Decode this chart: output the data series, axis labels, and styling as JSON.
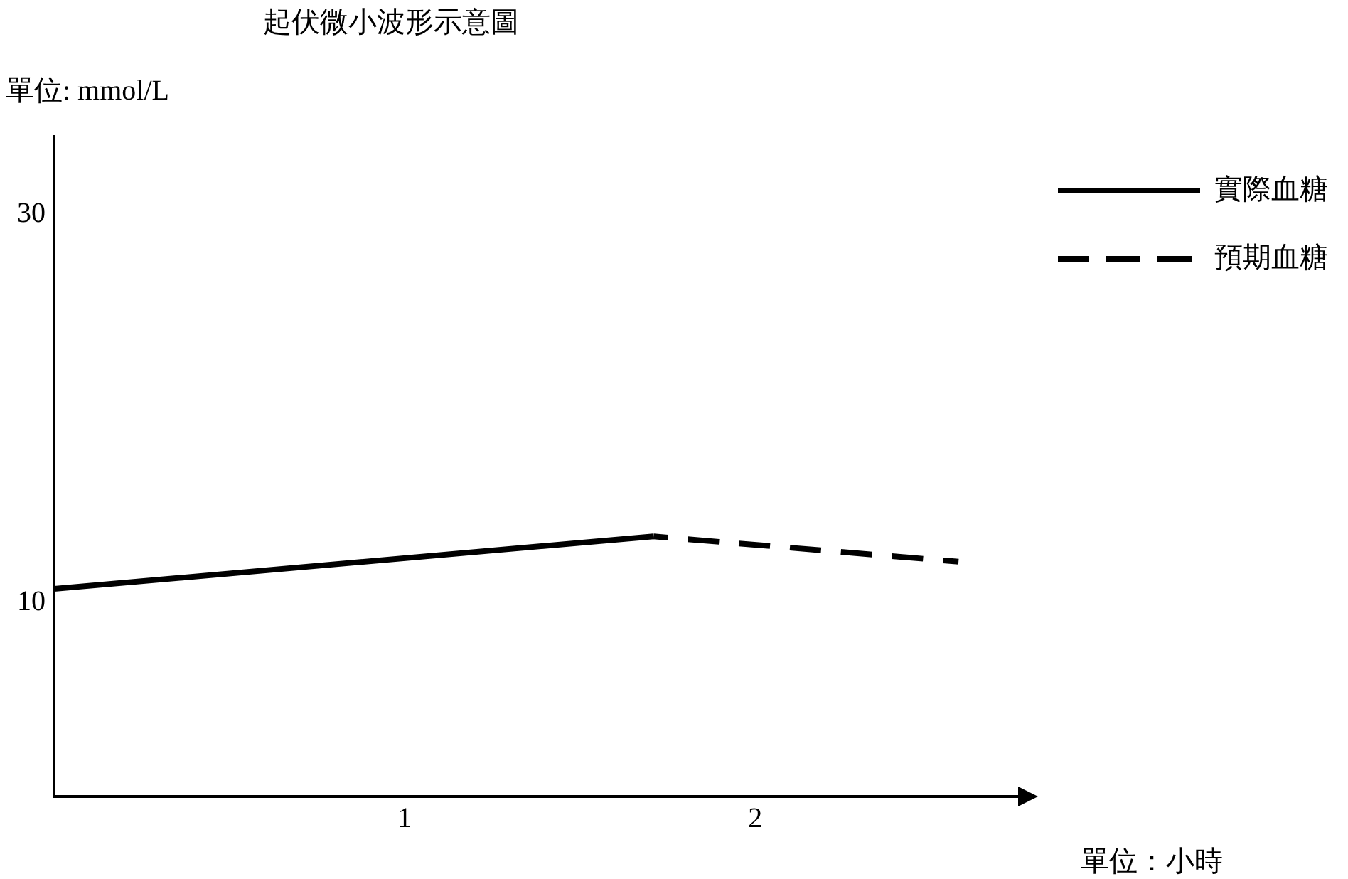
{
  "chart_data": {
    "type": "line",
    "title": "起伏微小波形示意圖",
    "ylabel": "單位: mmol/L",
    "xlabel": "單位：小時",
    "xlim": [
      0,
      2.75
    ],
    "xticks": [
      1,
      2
    ],
    "ylim": [
      0,
      34
    ],
    "yticks": [
      10,
      30
    ],
    "grid": false,
    "legend": "top right",
    "marker": "none",
    "series": [
      {
        "name": "實際血糖",
        "color": "#000000",
        "x": [
          0,
          1.71
        ],
        "values": [
          10.7,
          13.4
        ],
        "line_style": "solid"
      },
      {
        "name": "預期血糖",
        "color": "#000000",
        "x": [
          1.71,
          2.58
        ],
        "values": [
          13.4,
          12.1
        ],
        "line_style": "dashed"
      }
    ]
  }
}
